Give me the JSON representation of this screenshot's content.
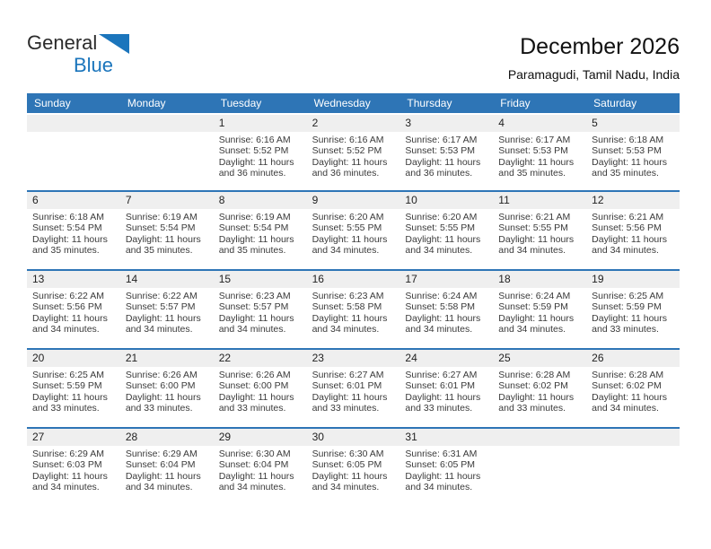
{
  "logo": {
    "part1": "General",
    "part2": "Blue",
    "dark_color": "#2b2b2b",
    "blue_color": "#1b75bc"
  },
  "header": {
    "title": "December 2026",
    "subtitle": "Paramagudi, Tamil Nadu, India"
  },
  "colors": {
    "header_bar": "#2e75b6",
    "week_separator": "#2e75b6",
    "date_strip": "#efefef",
    "body_text": "#3a3a3a"
  },
  "weekday_headers": [
    "Sunday",
    "Monday",
    "Tuesday",
    "Wednesday",
    "Thursday",
    "Friday",
    "Saturday"
  ],
  "weeks": [
    [
      {
        "day": "",
        "lines": []
      },
      {
        "day": "",
        "lines": []
      },
      {
        "day": "1",
        "lines": [
          "Sunrise: 6:16 AM",
          "Sunset: 5:52 PM",
          "Daylight: 11 hours",
          "and 36 minutes."
        ]
      },
      {
        "day": "2",
        "lines": [
          "Sunrise: 6:16 AM",
          "Sunset: 5:52 PM",
          "Daylight: 11 hours",
          "and 36 minutes."
        ]
      },
      {
        "day": "3",
        "lines": [
          "Sunrise: 6:17 AM",
          "Sunset: 5:53 PM",
          "Daylight: 11 hours",
          "and 36 minutes."
        ]
      },
      {
        "day": "4",
        "lines": [
          "Sunrise: 6:17 AM",
          "Sunset: 5:53 PM",
          "Daylight: 11 hours",
          "and 35 minutes."
        ]
      },
      {
        "day": "5",
        "lines": [
          "Sunrise: 6:18 AM",
          "Sunset: 5:53 PM",
          "Daylight: 11 hours",
          "and 35 minutes."
        ]
      }
    ],
    [
      {
        "day": "6",
        "lines": [
          "Sunrise: 6:18 AM",
          "Sunset: 5:54 PM",
          "Daylight: 11 hours",
          "and 35 minutes."
        ]
      },
      {
        "day": "7",
        "lines": [
          "Sunrise: 6:19 AM",
          "Sunset: 5:54 PM",
          "Daylight: 11 hours",
          "and 35 minutes."
        ]
      },
      {
        "day": "8",
        "lines": [
          "Sunrise: 6:19 AM",
          "Sunset: 5:54 PM",
          "Daylight: 11 hours",
          "and 35 minutes."
        ]
      },
      {
        "day": "9",
        "lines": [
          "Sunrise: 6:20 AM",
          "Sunset: 5:55 PM",
          "Daylight: 11 hours",
          "and 34 minutes."
        ]
      },
      {
        "day": "10",
        "lines": [
          "Sunrise: 6:20 AM",
          "Sunset: 5:55 PM",
          "Daylight: 11 hours",
          "and 34 minutes."
        ]
      },
      {
        "day": "11",
        "lines": [
          "Sunrise: 6:21 AM",
          "Sunset: 5:55 PM",
          "Daylight: 11 hours",
          "and 34 minutes."
        ]
      },
      {
        "day": "12",
        "lines": [
          "Sunrise: 6:21 AM",
          "Sunset: 5:56 PM",
          "Daylight: 11 hours",
          "and 34 minutes."
        ]
      }
    ],
    [
      {
        "day": "13",
        "lines": [
          "Sunrise: 6:22 AM",
          "Sunset: 5:56 PM",
          "Daylight: 11 hours",
          "and 34 minutes."
        ]
      },
      {
        "day": "14",
        "lines": [
          "Sunrise: 6:22 AM",
          "Sunset: 5:57 PM",
          "Daylight: 11 hours",
          "and 34 minutes."
        ]
      },
      {
        "day": "15",
        "lines": [
          "Sunrise: 6:23 AM",
          "Sunset: 5:57 PM",
          "Daylight: 11 hours",
          "and 34 minutes."
        ]
      },
      {
        "day": "16",
        "lines": [
          "Sunrise: 6:23 AM",
          "Sunset: 5:58 PM",
          "Daylight: 11 hours",
          "and 34 minutes."
        ]
      },
      {
        "day": "17",
        "lines": [
          "Sunrise: 6:24 AM",
          "Sunset: 5:58 PM",
          "Daylight: 11 hours",
          "and 34 minutes."
        ]
      },
      {
        "day": "18",
        "lines": [
          "Sunrise: 6:24 AM",
          "Sunset: 5:59 PM",
          "Daylight: 11 hours",
          "and 34 minutes."
        ]
      },
      {
        "day": "19",
        "lines": [
          "Sunrise: 6:25 AM",
          "Sunset: 5:59 PM",
          "Daylight: 11 hours",
          "and 33 minutes."
        ]
      }
    ],
    [
      {
        "day": "20",
        "lines": [
          "Sunrise: 6:25 AM",
          "Sunset: 5:59 PM",
          "Daylight: 11 hours",
          "and 33 minutes."
        ]
      },
      {
        "day": "21",
        "lines": [
          "Sunrise: 6:26 AM",
          "Sunset: 6:00 PM",
          "Daylight: 11 hours",
          "and 33 minutes."
        ]
      },
      {
        "day": "22",
        "lines": [
          "Sunrise: 6:26 AM",
          "Sunset: 6:00 PM",
          "Daylight: 11 hours",
          "and 33 minutes."
        ]
      },
      {
        "day": "23",
        "lines": [
          "Sunrise: 6:27 AM",
          "Sunset: 6:01 PM",
          "Daylight: 11 hours",
          "and 33 minutes."
        ]
      },
      {
        "day": "24",
        "lines": [
          "Sunrise: 6:27 AM",
          "Sunset: 6:01 PM",
          "Daylight: 11 hours",
          "and 33 minutes."
        ]
      },
      {
        "day": "25",
        "lines": [
          "Sunrise: 6:28 AM",
          "Sunset: 6:02 PM",
          "Daylight: 11 hours",
          "and 33 minutes."
        ]
      },
      {
        "day": "26",
        "lines": [
          "Sunrise: 6:28 AM",
          "Sunset: 6:02 PM",
          "Daylight: 11 hours",
          "and 34 minutes."
        ]
      }
    ],
    [
      {
        "day": "27",
        "lines": [
          "Sunrise: 6:29 AM",
          "Sunset: 6:03 PM",
          "Daylight: 11 hours",
          "and 34 minutes."
        ]
      },
      {
        "day": "28",
        "lines": [
          "Sunrise: 6:29 AM",
          "Sunset: 6:04 PM",
          "Daylight: 11 hours",
          "and 34 minutes."
        ]
      },
      {
        "day": "29",
        "lines": [
          "Sunrise: 6:30 AM",
          "Sunset: 6:04 PM",
          "Daylight: 11 hours",
          "and 34 minutes."
        ]
      },
      {
        "day": "30",
        "lines": [
          "Sunrise: 6:30 AM",
          "Sunset: 6:05 PM",
          "Daylight: 11 hours",
          "and 34 minutes."
        ]
      },
      {
        "day": "31",
        "lines": [
          "Sunrise: 6:31 AM",
          "Sunset: 6:05 PM",
          "Daylight: 11 hours",
          "and 34 minutes."
        ]
      },
      {
        "day": "",
        "lines": []
      },
      {
        "day": "",
        "lines": []
      }
    ]
  ]
}
